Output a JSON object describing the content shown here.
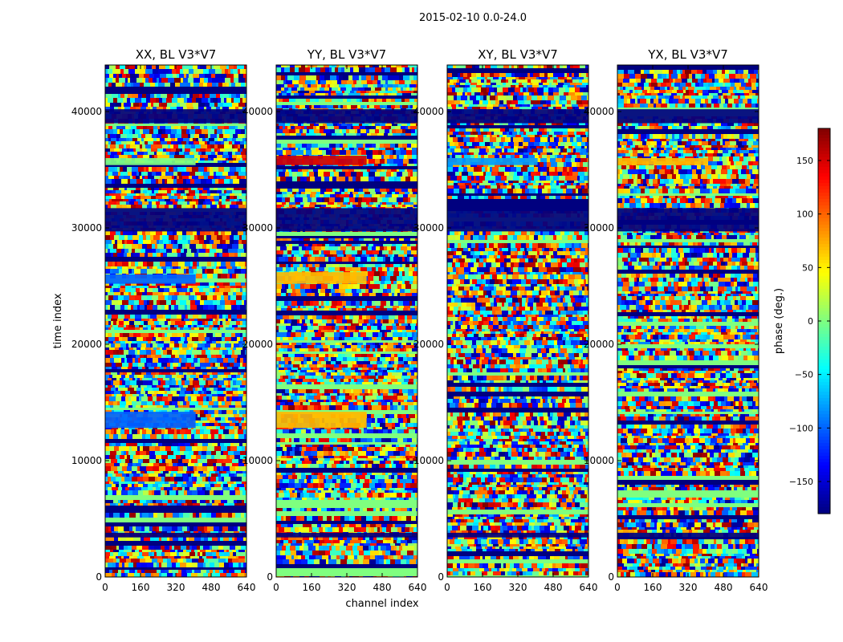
{
  "figure": {
    "suptitle": "2015-02-10 0.0-24.0"
  },
  "chart_data": {
    "type": "heatmap",
    "xlabel": "channel index",
    "ylabel": "time index",
    "xlim": [
      0,
      640
    ],
    "ylim": [
      0,
      44000
    ],
    "x_ticks": [
      0,
      160,
      320,
      480,
      640
    ],
    "y_ticks": [
      0,
      10000,
      20000,
      30000,
      40000
    ],
    "panels": [
      {
        "title": "XX, BL V3*V7",
        "mean_phase_blocks": [
          {
            "t0": 39000,
            "t1": 40200,
            "phase": -180
          },
          {
            "t0": 29700,
            "t1": 31700,
            "phase": -180
          },
          {
            "t0": 35400,
            "t1": 36000,
            "phase": 0
          },
          {
            "t0": 12800,
            "t1": 14200,
            "phase": -100
          },
          {
            "t0": 25200,
            "t1": 26000,
            "phase": -100
          },
          {
            "t0": 3400,
            "t1": 3800,
            "phase": -180
          }
        ]
      },
      {
        "title": "YY, BL V3*V7",
        "mean_phase_blocks": [
          {
            "t0": 39000,
            "t1": 40200,
            "phase": -180
          },
          {
            "t0": 29700,
            "t1": 31700,
            "phase": -180
          },
          {
            "t0": 35400,
            "t1": 36200,
            "phase": 150
          },
          {
            "t0": 12800,
            "t1": 14200,
            "phase": 70
          },
          {
            "t0": 25200,
            "t1": 26200,
            "phase": 70
          },
          {
            "t0": 3400,
            "t1": 3800,
            "phase": -180
          }
        ]
      },
      {
        "title": "XY, BL V3*V7",
        "mean_phase_blocks": [
          {
            "t0": 39000,
            "t1": 40200,
            "phase": -180
          },
          {
            "t0": 29700,
            "t1": 31700,
            "phase": -180
          },
          {
            "t0": 35400,
            "t1": 36000,
            "phase": -80
          },
          {
            "t0": 3400,
            "t1": 3800,
            "phase": -180
          }
        ]
      },
      {
        "title": "YX, BL V3*V7",
        "mean_phase_blocks": [
          {
            "t0": 39000,
            "t1": 40200,
            "phase": -180
          },
          {
            "t0": 29700,
            "t1": 31700,
            "phase": -180
          },
          {
            "t0": 35400,
            "t1": 36000,
            "phase": 70
          },
          {
            "t0": 3400,
            "t1": 3800,
            "phase": -180
          }
        ]
      }
    ],
    "colorbar": {
      "label": "phase (deg.)",
      "colormap": "jet",
      "range": [
        -180,
        180
      ],
      "ticks": [
        150,
        100,
        50,
        0,
        -50,
        -100,
        -150
      ],
      "tick_labels": [
        "150",
        "100",
        "50",
        "0",
        "−50",
        "−100",
        "−150"
      ]
    }
  }
}
